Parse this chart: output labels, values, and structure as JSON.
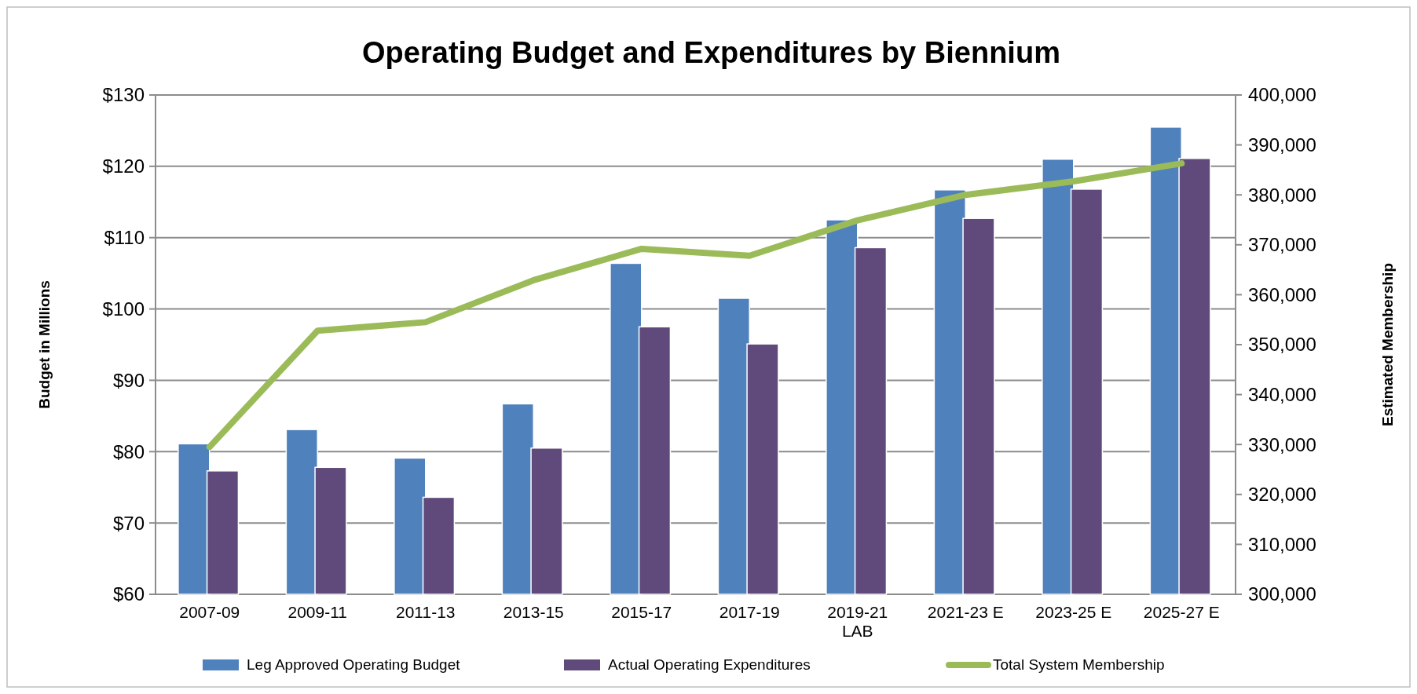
{
  "chart_data": {
    "type": "bar",
    "title": "Operating Budget and Expenditures by Biennium",
    "ylabel": "Budget in Millions",
    "y2label": "Estimated Membership",
    "categories": [
      "2007-09",
      "2009-11",
      "2011-13",
      "2013-15",
      "2015-17",
      "2017-19",
      "2019-21\nLAB",
      "2021-23 E",
      "2023-25 E",
      "2025-27 E"
    ],
    "series": [
      {
        "name": "Leg Approved Operating Budget",
        "color": "#4f81bd",
        "values": [
          81.1,
          83.1,
          79.1,
          86.7,
          106.4,
          101.5,
          112.5,
          116.7,
          121.0,
          125.5
        ]
      },
      {
        "name": "Actual Operating Expenditures",
        "color": "#604a7b",
        "values": [
          77.3,
          77.8,
          73.6,
          80.5,
          97.5,
          95.1,
          108.6,
          112.7,
          116.8,
          121.1
        ]
      },
      {
        "name": "Total System Membership",
        "color": "#9bbb59",
        "type": "line",
        "axis": "y2",
        "values": [
          329500,
          352800,
          354500,
          362900,
          369200,
          367800,
          374900,
          380000,
          382700,
          386300
        ]
      }
    ],
    "ylim": [
      60,
      130
    ],
    "yticks": [
      {
        "value": 60,
        "label": "$60"
      },
      {
        "value": 70,
        "label": "$70"
      },
      {
        "value": 80,
        "label": "$80"
      },
      {
        "value": 90,
        "label": "$90"
      },
      {
        "value": 100,
        "label": "$100"
      },
      {
        "value": 110,
        "label": "$110"
      },
      {
        "value": 120,
        "label": "$120"
      },
      {
        "value": 130,
        "label": "$130"
      }
    ],
    "y2lim": [
      300000,
      400000
    ],
    "y2ticks": [
      {
        "value": 300000,
        "label": "300,000"
      },
      {
        "value": 310000,
        "label": "310,000"
      },
      {
        "value": 320000,
        "label": "320,000"
      },
      {
        "value": 330000,
        "label": "330,000"
      },
      {
        "value": 340000,
        "label": "340,000"
      },
      {
        "value": 350000,
        "label": "350,000"
      },
      {
        "value": 360000,
        "label": "360,000"
      },
      {
        "value": 370000,
        "label": "370,000"
      },
      {
        "value": 380000,
        "label": "380,000"
      },
      {
        "value": 390000,
        "label": "390,000"
      },
      {
        "value": 400000,
        "label": "400,000"
      }
    ],
    "grid": "y",
    "legend": "bottom",
    "marker": "none",
    "line_style": "solid"
  }
}
